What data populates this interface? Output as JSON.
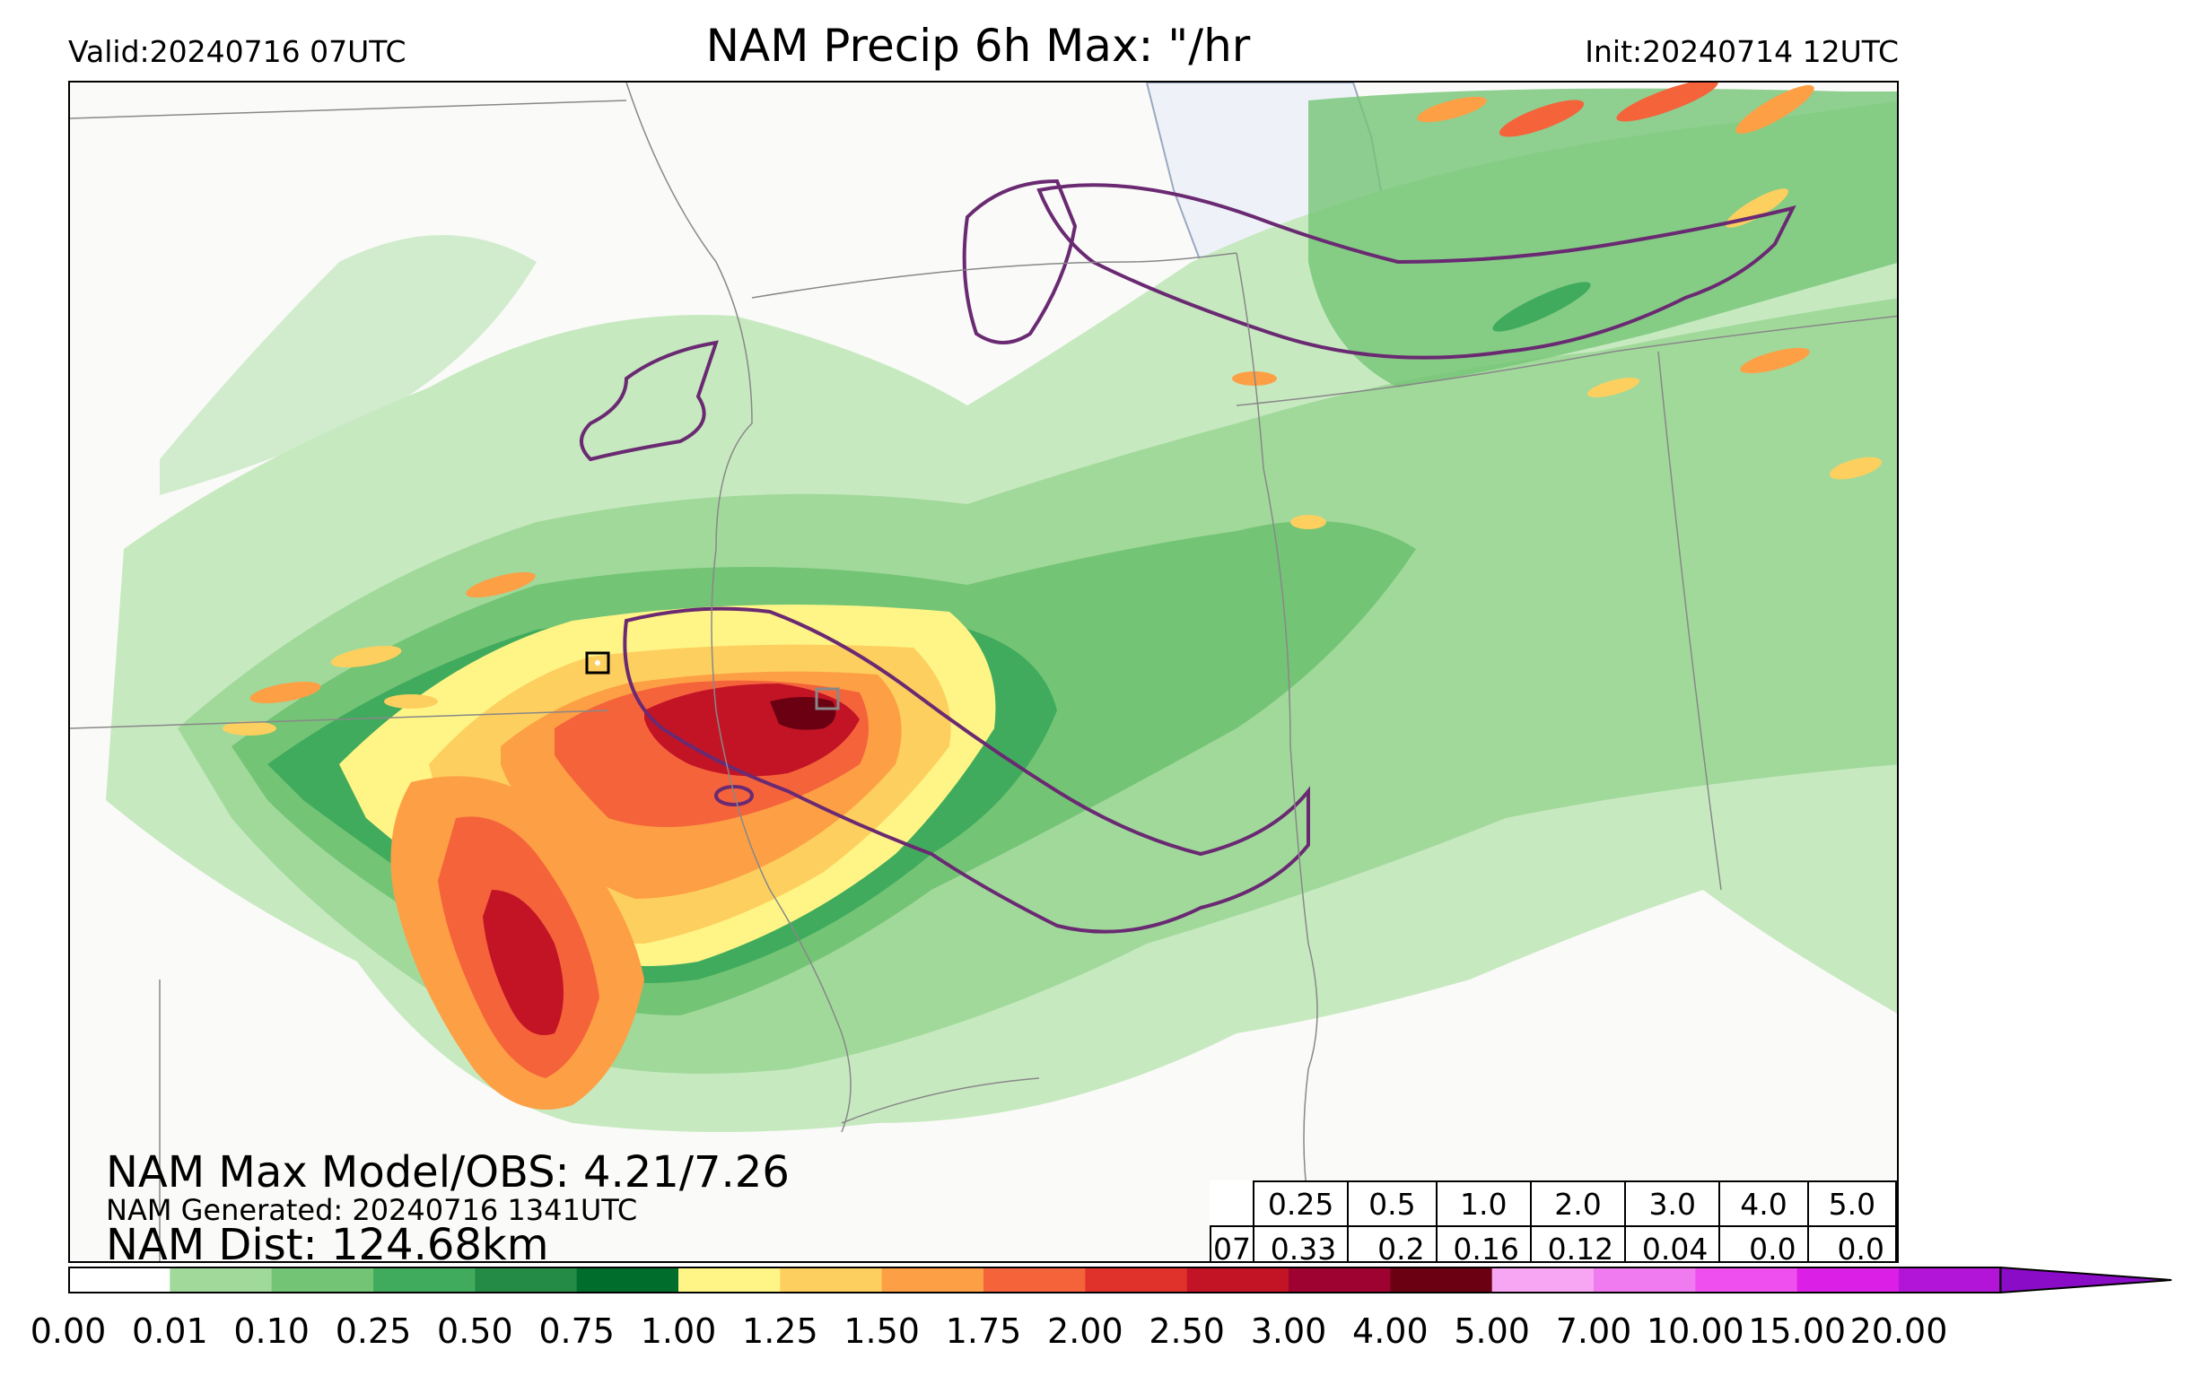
{
  "header": {
    "valid": "Valid:20240716 07UTC",
    "title": "NAM Precip 6h Max: \"/hr",
    "init": "Init:20240714 12UTC"
  },
  "overlay": {
    "max_model_obs": "NAM Max Model/OBS: 4.21/7.26",
    "generated": "NAM Generated: 20240716 1341UTC",
    "dist": "NAM Dist: 124.68km"
  },
  "stats_table": {
    "hour": "07",
    "thresholds": [
      "0.25",
      "0.5",
      "1.0",
      "2.0",
      "3.0",
      "4.0",
      "5.0"
    ],
    "values": [
      "0.33",
      "0.2",
      "0.16",
      "0.12",
      "0.04",
      "0.0",
      "0.0"
    ]
  },
  "colorbar": {
    "ticks": [
      "0.00",
      "0.01",
      "0.10",
      "0.25",
      "0.50",
      "0.75",
      "1.00",
      "1.25",
      "1.50",
      "1.75",
      "2.00",
      "2.50",
      "3.00",
      "4.00",
      "5.00",
      "7.00",
      "10.00",
      "15.00",
      "20.00"
    ],
    "colors": [
      "#ffffff",
      "#c7e9c0",
      "#a1d99b",
      "#74c476",
      "#41ab5d",
      "#238b45",
      "#006d2c",
      "#fff587",
      "#fdcf5e",
      "#fd9f45",
      "#f5633b",
      "#e0322a",
      "#c31426",
      "#9e0230",
      "#6b0012",
      "#f7a6f4",
      "#f07af0",
      "#ef4fef",
      "#dc1fe6",
      "#b315d8",
      "#8a0cc7"
    ]
  }
}
